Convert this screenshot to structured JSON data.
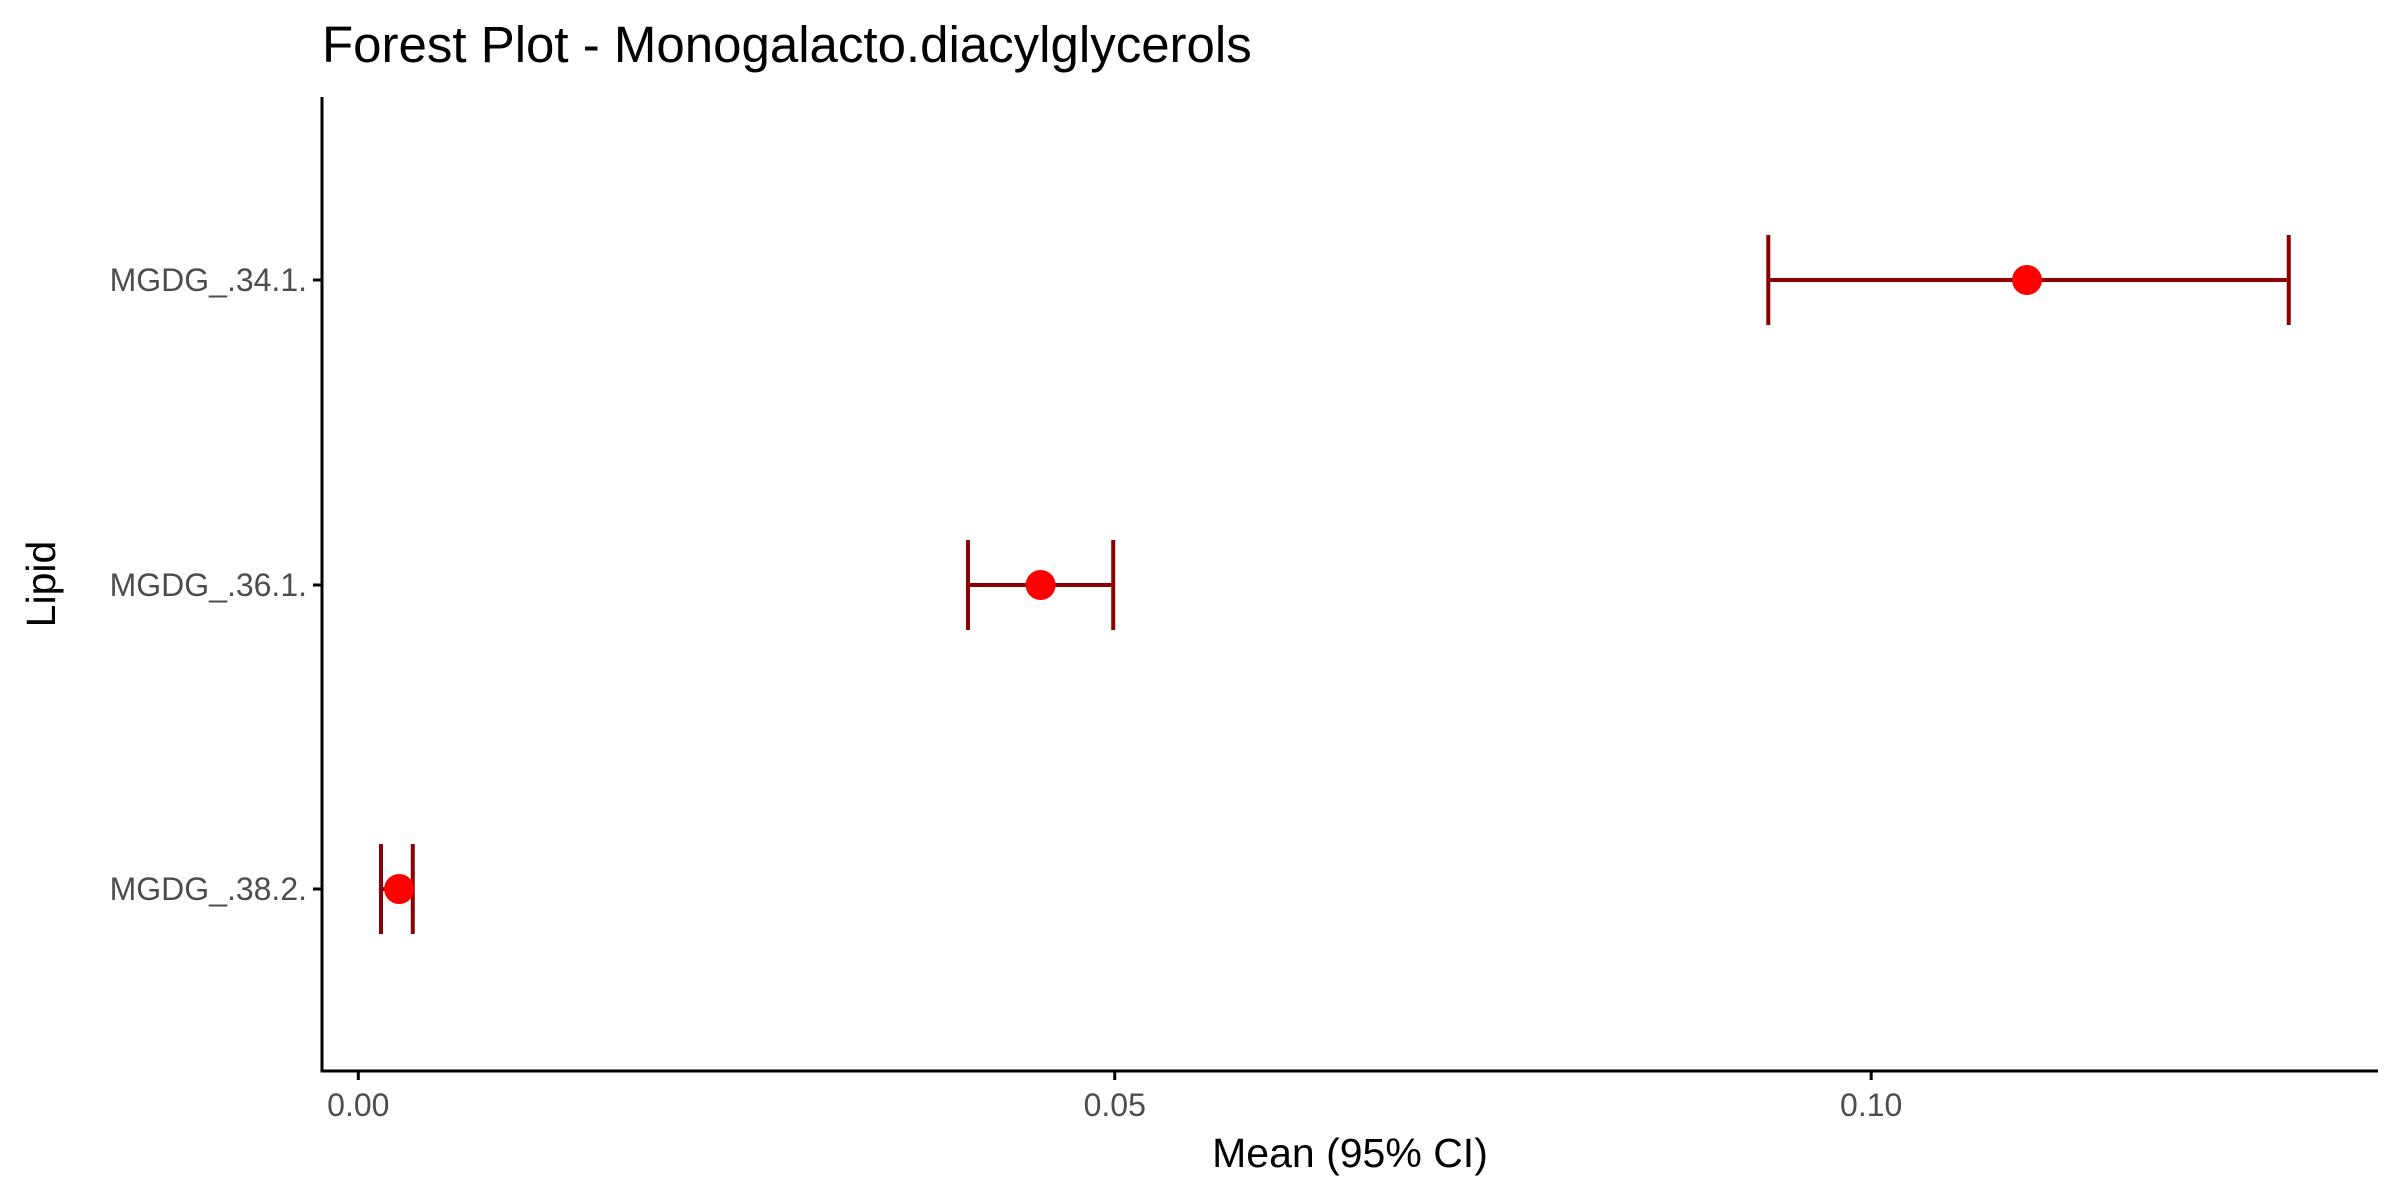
{
  "chart_data": {
    "type": "forest",
    "title": "Forest Plot - Monogalacto.diacylglycerols",
    "xlabel": "Mean (95% CI)",
    "ylabel": "Lipid",
    "xlim": [
      -0.0024,
      0.1335
    ],
    "x_ticks": [
      0.0,
      0.05,
      0.1
    ],
    "x_tick_labels": [
      "0.00",
      "0.05",
      "0.10"
    ],
    "categories": [
      "MGDG_.34.1.",
      "MGDG_.36.1.",
      "MGDG_.38.2."
    ],
    "mean": [
      0.1103,
      0.0451,
      0.0027
    ],
    "ci_lower": [
      0.0932,
      0.0403,
      0.0015
    ],
    "ci_upper": [
      0.1276,
      0.0499,
      0.0036
    ],
    "grid": false,
    "legend": "none",
    "colors": {
      "point": "#ff0000",
      "errorbar": "#8b0000",
      "axis": "#000000",
      "tick_text": "#4d4d4d"
    }
  }
}
